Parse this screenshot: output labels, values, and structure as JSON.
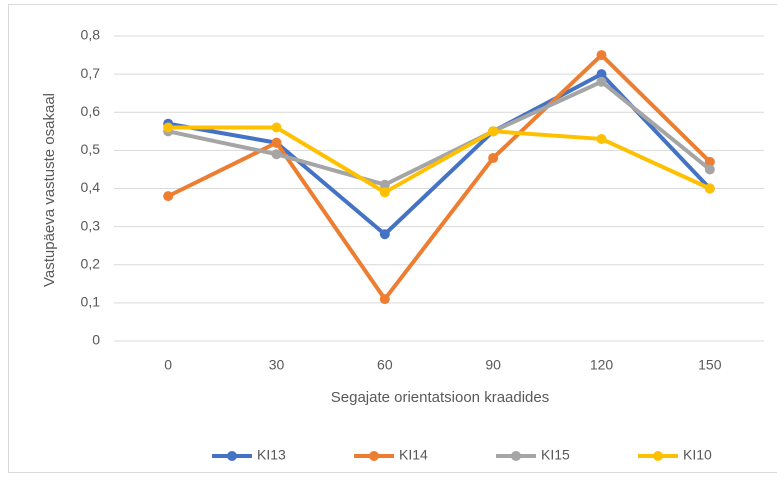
{
  "chart_data": {
    "type": "line",
    "y_label": "Vastupäeva vastuste osakaal",
    "x_label": "Segajate orientatsioon kraadides",
    "categories": [
      "0",
      "30",
      "60",
      "90",
      "120",
      "150"
    ],
    "series": [
      {
        "name": "KI13",
        "color": "#4472c4",
        "values": [
          0.57,
          0.52,
          0.28,
          0.55,
          0.7,
          0.4
        ]
      },
      {
        "name": "KI14",
        "color": "#ed7d31",
        "values": [
          0.38,
          0.52,
          0.11,
          0.48,
          0.75,
          0.47
        ]
      },
      {
        "name": "KI15",
        "color": "#a5a5a5",
        "values": [
          0.55,
          0.49,
          0.41,
          0.55,
          0.68,
          0.45
        ]
      },
      {
        "name": "KI10",
        "color": "#ffc000",
        "values": [
          0.56,
          0.56,
          0.39,
          0.55,
          0.53,
          0.4
        ]
      }
    ],
    "ylim": [
      0,
      0.8
    ],
    "yticks": [
      0,
      {
        "value": 0.1,
        "label": "0,1"
      },
      {
        "value": 0.2,
        "label": "0,2"
      },
      {
        "value": 0.3,
        "label": "0,3"
      },
      {
        "value": 0.4,
        "label": "0,4"
      },
      {
        "value": 0.5,
        "label": "0,5"
      },
      {
        "value": 0.6,
        "label": "0,6"
      },
      {
        "value": 0.7,
        "label": "0,7"
      },
      {
        "value": 0.8,
        "label": "0,8"
      }
    ],
    "grid": true,
    "legend": "bottom"
  }
}
